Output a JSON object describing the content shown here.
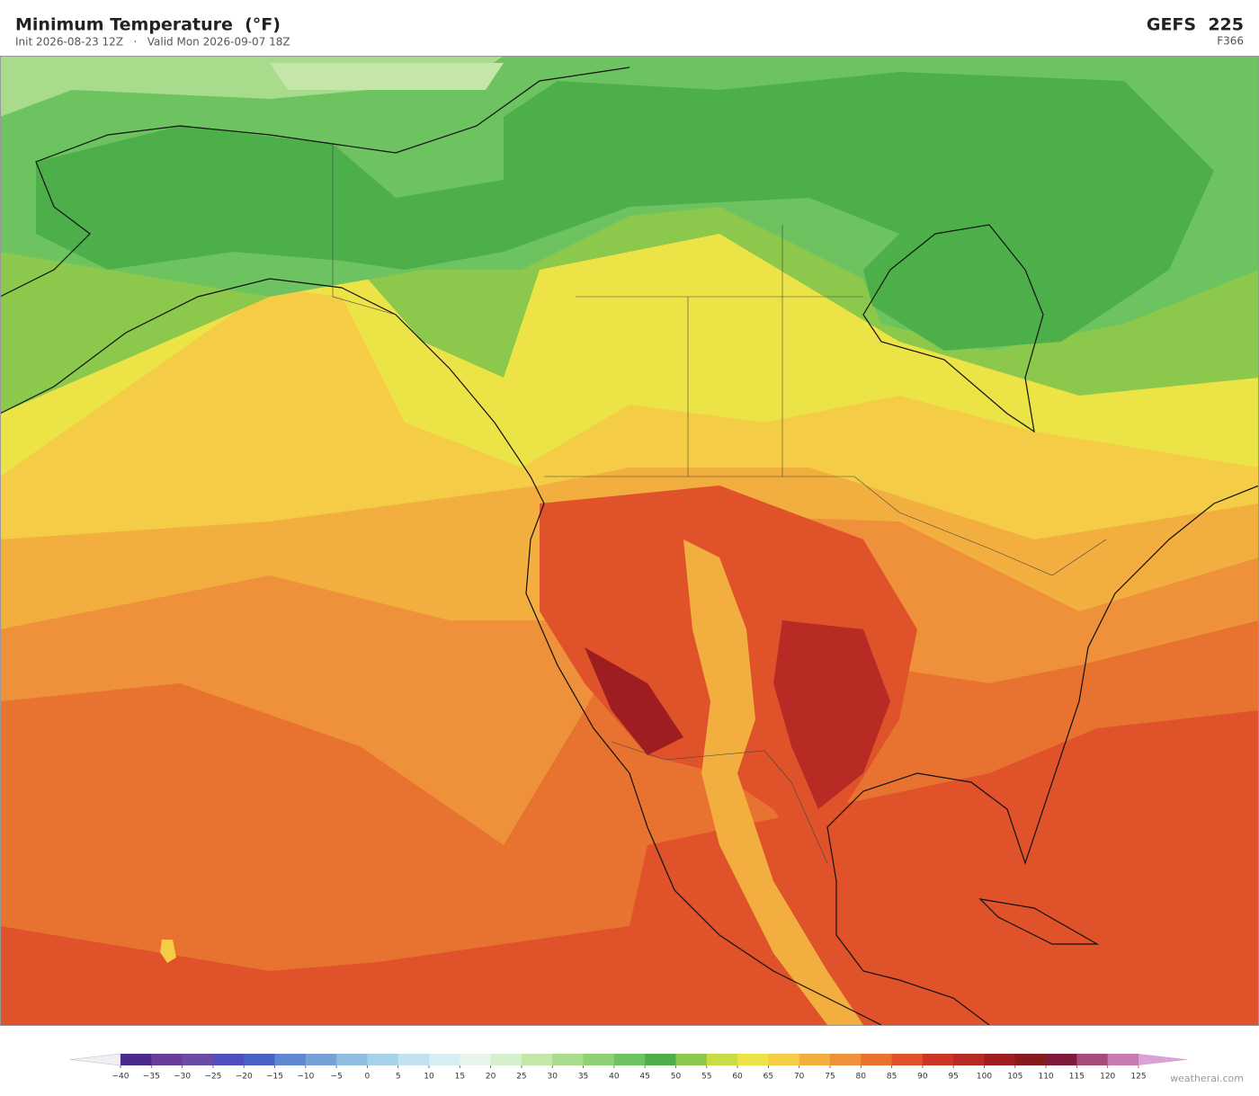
{
  "header": {
    "title": "Minimum Temperature  (°F)",
    "subtitle": "Init 2026-08-23 12Z   ·   Valid Mon 2026-09-07 18Z",
    "model": "GEFS  225",
    "forecast_hour": "F366"
  },
  "colorbar": {
    "ticks": [
      {
        "value": -40,
        "label": "−40"
      },
      {
        "value": -35,
        "label": "−35"
      },
      {
        "value": -30,
        "label": "−30"
      },
      {
        "value": -25,
        "label": "−25"
      },
      {
        "value": -20,
        "label": "−20"
      },
      {
        "value": -15,
        "label": "−15"
      },
      {
        "value": -10,
        "label": "−10"
      },
      {
        "value": -5,
        "label": "−5"
      },
      0,
      5,
      10,
      15,
      20,
      25,
      30,
      35,
      40,
      45,
      50,
      55,
      60,
      65,
      70,
      75,
      80,
      85,
      90,
      95,
      100,
      105,
      110,
      115,
      120,
      125
    ],
    "colors": [
      "#f1eef4",
      "#4a2a8c",
      "#6a3d9a",
      "#6b4aa8",
      "#4f4fbf",
      "#4a62c8",
      "#5f86d0",
      "#78a0d8",
      "#8fbde0",
      "#a8d2ea",
      "#c2e2ef",
      "#d8edf3",
      "#e6f4ec",
      "#d6efcf",
      "#c5e6a8",
      "#a9db8c",
      "#8ed174",
      "#6cc35f",
      "#4daf4a",
      "#8cc84b",
      "#c9db45",
      "#ece446",
      "#f4cc45",
      "#f2ae3e",
      "#ee913a",
      "#e8722f",
      "#e0522a",
      "#cc3626",
      "#b82a24",
      "#9e1d20",
      "#861a1d",
      "#7e1a3a",
      "#a84a7a",
      "#c57ab0",
      "#d9a3d3"
    ]
  },
  "footer": {
    "credit": "weatherai.com"
  }
}
